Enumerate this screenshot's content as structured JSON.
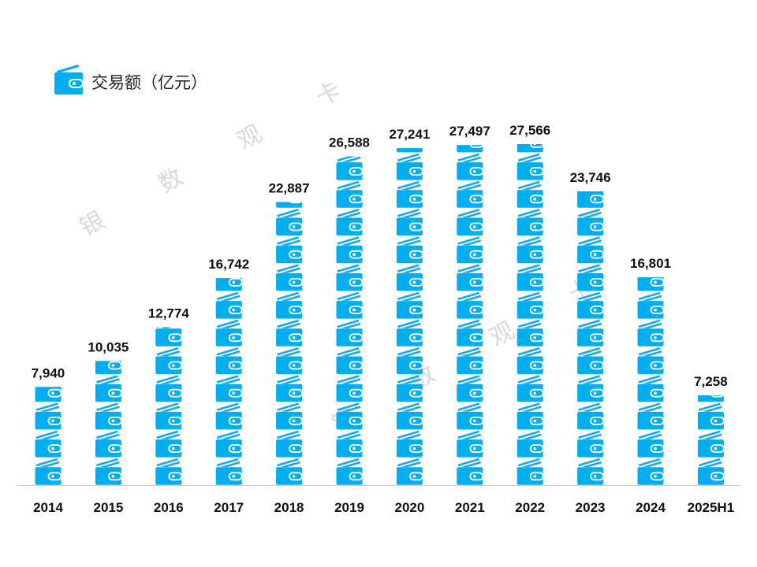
{
  "chart_data": {
    "type": "bar",
    "style": "pictograph",
    "icon": "wallet-icon",
    "legend": {
      "label": "交易额（亿元）",
      "position": "top-left"
    },
    "categories": [
      "2014",
      "2015",
      "2016",
      "2017",
      "2018",
      "2019",
      "2020",
      "2021",
      "2022",
      "2023",
      "2024",
      "2025H1"
    ],
    "values": [
      7940,
      10035,
      12774,
      16742,
      22887,
      26588,
      27241,
      27497,
      27566,
      23746,
      16801,
      7258
    ],
    "value_labels": [
      "7,940",
      "10,035",
      "12,774",
      "16,742",
      "22,887",
      "26,588",
      "27,241",
      "27,497",
      "27,566",
      "23,746",
      "16,801",
      "7,258"
    ],
    "ylim": [
      0,
      30000
    ],
    "grid": false,
    "colors": {
      "bar": "#00AEEF",
      "stripe": "#1FA8E6",
      "baseline": "#D0D0D0"
    }
  },
  "watermark": [
    "银",
    "数",
    "观",
    "卡"
  ]
}
